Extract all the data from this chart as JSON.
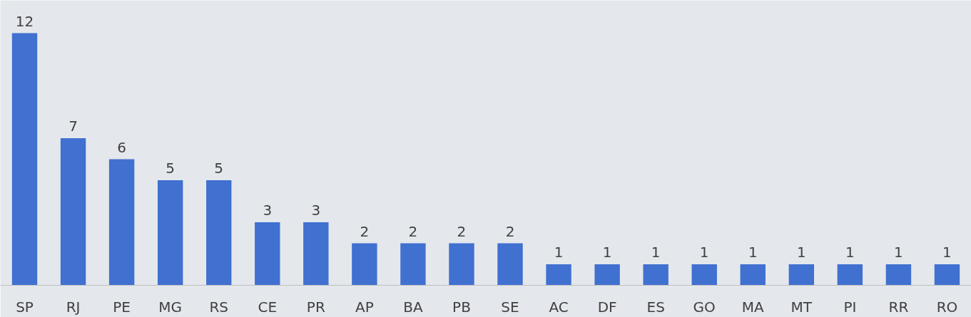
{
  "chart_data": {
    "type": "bar",
    "categories": [
      "SP",
      "RJ",
      "PE",
      "MG",
      "RS",
      "CE",
      "PR",
      "AP",
      "BA",
      "PB",
      "SE",
      "AC",
      "DF",
      "ES",
      "GO",
      "MA",
      "MT",
      "PI",
      "RR",
      "RO"
    ],
    "values": [
      12,
      7,
      6,
      5,
      5,
      3,
      3,
      2,
      2,
      2,
      2,
      1,
      1,
      1,
      1,
      1,
      1,
      1,
      1,
      1
    ],
    "color": "#4070d0",
    "data_labels": true,
    "grid": false
  }
}
